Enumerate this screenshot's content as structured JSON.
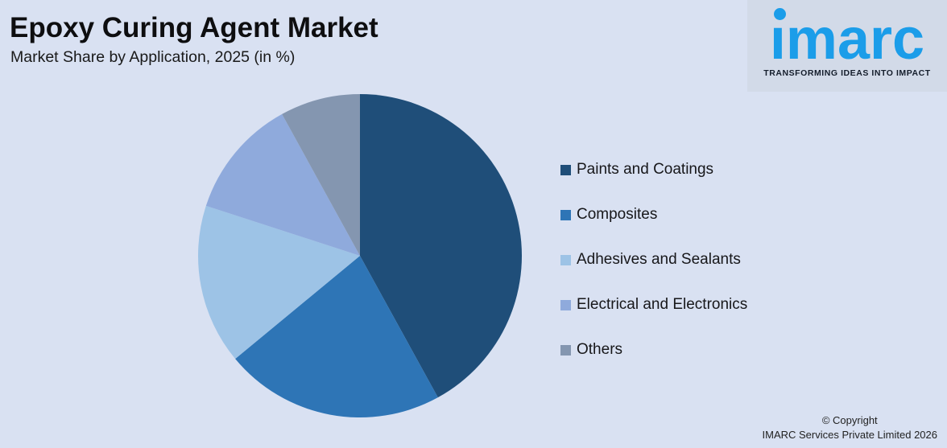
{
  "page": {
    "title": "Epoxy Curing Agent Market",
    "subtitle": "Market Share by Application, 2025 (in %)",
    "background_color": "#d9e1f2"
  },
  "logo": {
    "brand": "imarc",
    "brand_display": "ımarc",
    "tagline": "TRANSFORMING IDEAS INTO IMPACT",
    "brand_color": "#1b9de9",
    "dot_color": "#1b9de9"
  },
  "chart_data": {
    "type": "pie",
    "title": "Epoxy Curing Agent Market",
    "subtitle": "Market Share by Application, 2025 (in %)",
    "unit": "%",
    "start_angle_deg": 0,
    "direction": "clockwise",
    "legend_position": "right",
    "data_labels_shown": false,
    "slices": [
      {
        "label": "Paints and Coatings",
        "value": 42,
        "color": "#1f4e79"
      },
      {
        "label": "Composites",
        "value": 22,
        "color": "#2e75b6"
      },
      {
        "label": "Adhesives and Sealants",
        "value": 16,
        "color": "#9dc3e6"
      },
      {
        "label": "Electrical and Electronics",
        "value": 12,
        "color": "#8faadc"
      },
      {
        "label": "Others",
        "value": 8,
        "color": "#8496b0"
      }
    ]
  },
  "footer": {
    "line1": "© Copyright",
    "line2": "IMARC Services Private Limited 2026"
  }
}
